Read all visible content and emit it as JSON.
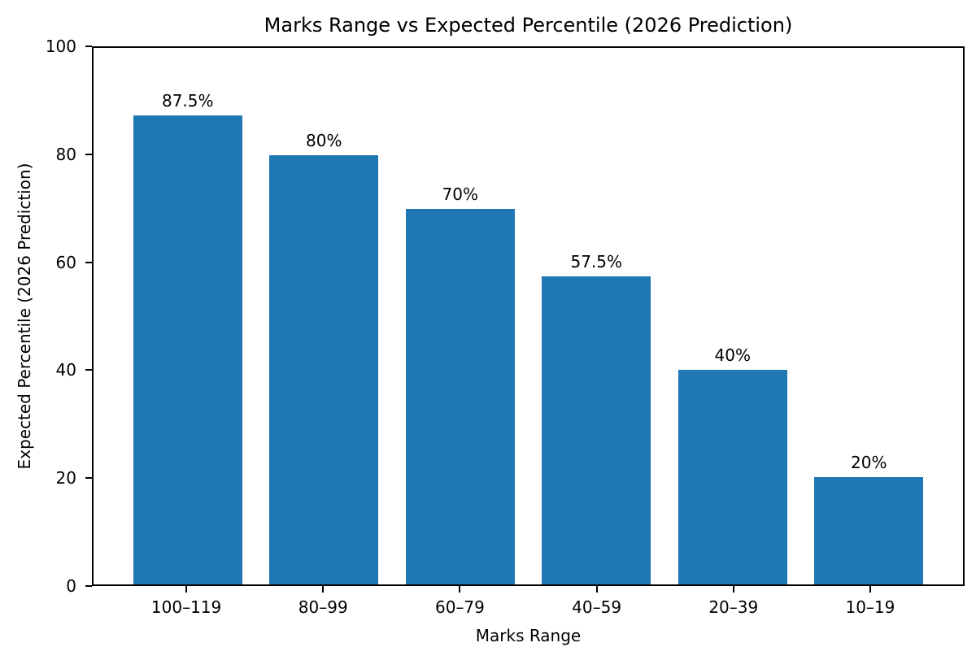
{
  "chart_data": {
    "type": "bar",
    "title": "Marks Range vs Expected Percentile (2026 Prediction)",
    "xlabel": "Marks Range",
    "ylabel": "Expected Percentile (2026 Prediction)",
    "categories": [
      "100–119",
      "80–99",
      "60–79",
      "40–59",
      "20–39",
      "10–19"
    ],
    "values": [
      87.5,
      80,
      70,
      57.5,
      40,
      20
    ],
    "bar_labels": [
      "87.5%",
      "80%",
      "70%",
      "57.5%",
      "40%",
      "20%"
    ],
    "ylim": [
      0,
      100
    ],
    "yticks": [
      0,
      20,
      40,
      60,
      80,
      100
    ],
    "bar_color": "#1f77b4",
    "spine_color": "#000000",
    "text_color": "#000000",
    "background_color": "#ffffff",
    "grid": false,
    "legend": false
  }
}
